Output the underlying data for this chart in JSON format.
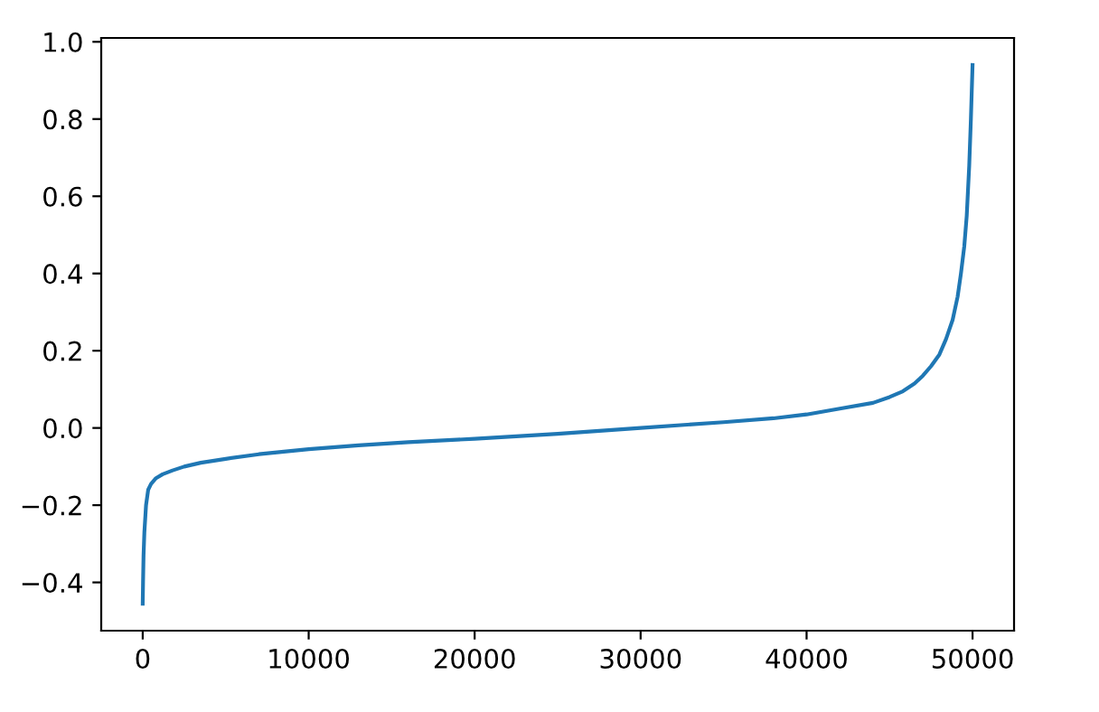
{
  "chart_data": {
    "type": "line",
    "x": [
      0,
      20,
      50,
      100,
      200,
      330,
      500,
      800,
      1200,
      1800,
      2500,
      3500,
      5000,
      7000,
      10000,
      13000,
      16000,
      20000,
      25000,
      30000,
      35000,
      38000,
      40000,
      42000,
      44000,
      45000,
      45800,
      46500,
      47000,
      47500,
      48000,
      48400,
      48800,
      49100,
      49300,
      49500,
      49650,
      49800,
      49900,
      50000
    ],
    "series": [
      {
        "color": "#1f77b4",
        "values": [
          -0.455,
          -0.4,
          -0.33,
          -0.27,
          -0.2,
          -0.16,
          -0.145,
          -0.13,
          -0.12,
          -0.11,
          -0.1,
          -0.09,
          -0.08,
          -0.068,
          -0.055,
          -0.045,
          -0.037,
          -0.028,
          -0.015,
          0.0,
          0.015,
          0.025,
          0.035,
          0.05,
          0.065,
          0.08,
          0.095,
          0.115,
          0.135,
          0.16,
          0.19,
          0.23,
          0.28,
          0.34,
          0.4,
          0.47,
          0.55,
          0.68,
          0.8,
          0.94
        ]
      }
    ],
    "xlim": [
      -2500,
      52500
    ],
    "ylim": [
      -0.525,
      1.01
    ],
    "xticks": [
      0,
      10000,
      20000,
      30000,
      40000,
      50000
    ],
    "yticks": [
      {
        "value": -0.4,
        "label": "−0.4"
      },
      {
        "value": -0.2,
        "label": "−0.2"
      },
      "0.0",
      "0.2",
      "0.4",
      "0.6",
      "0.8",
      "1.0"
    ],
    "grid": false,
    "legend": false
  }
}
